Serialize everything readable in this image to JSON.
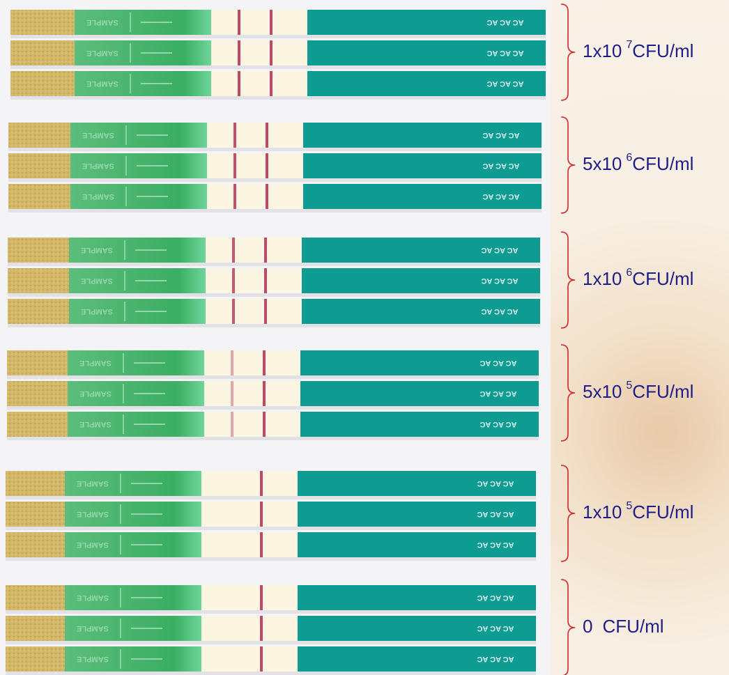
{
  "strip_print": {
    "sample": "SAMPLE",
    "control": "AC AC AC"
  },
  "groups": [
    {
      "coefficient": "1x10",
      "exponent": "7",
      "unit": "CFU/ml"
    },
    {
      "coefficient": "5x10",
      "exponent": "6",
      "unit": "CFU/ml"
    },
    {
      "coefficient": "1x10",
      "exponent": "6",
      "unit": "CFU/ml"
    },
    {
      "coefficient": "5x10",
      "exponent": "5",
      "unit": "CFU/ml"
    },
    {
      "coefficient": "1x10",
      "exponent": "5",
      "unit": "CFU/ml"
    },
    {
      "coefficient": "0",
      "exponent": null,
      "unit": "CFU/ml"
    }
  ]
}
